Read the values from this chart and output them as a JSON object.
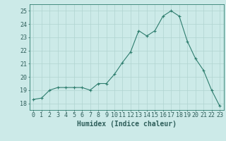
{
  "x": [
    0,
    1,
    2,
    3,
    4,
    5,
    6,
    7,
    8,
    9,
    10,
    11,
    12,
    13,
    14,
    15,
    16,
    17,
    18,
    19,
    20,
    21,
    22,
    23
  ],
  "y": [
    18.3,
    18.4,
    19.0,
    19.2,
    19.2,
    19.2,
    19.2,
    19.0,
    19.5,
    19.5,
    20.2,
    21.1,
    21.9,
    23.5,
    23.1,
    23.5,
    24.6,
    25.0,
    24.6,
    22.7,
    21.4,
    20.5,
    19.0,
    17.8
  ],
  "line_color": "#2e7d6e",
  "marker": "+",
  "bg_color": "#cceae8",
  "grid_color": "#b0d4d0",
  "xlabel": "Humidex (Indice chaleur)",
  "ylim": [
    17.5,
    25.5
  ],
  "xlim": [
    -0.5,
    23.5
  ],
  "yticks": [
    18,
    19,
    20,
    21,
    22,
    23,
    24,
    25
  ],
  "xticks": [
    0,
    1,
    2,
    3,
    4,
    5,
    6,
    7,
    8,
    9,
    10,
    11,
    12,
    13,
    14,
    15,
    16,
    17,
    18,
    19,
    20,
    21,
    22,
    23
  ],
  "font_color": "#2e5e5a",
  "axis_color": "#2e7d6e",
  "label_fontsize": 7.0,
  "tick_fontsize": 6.0
}
